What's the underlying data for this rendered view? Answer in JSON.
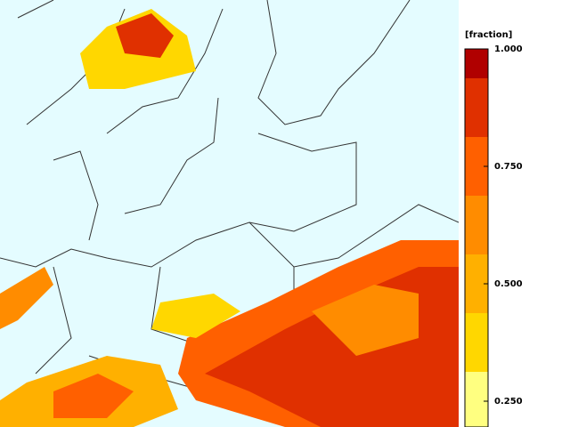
{
  "colorbar": {
    "label": "[fraction]",
    "ticks": [
      {
        "value": 1,
        "label": "1.000"
      },
      {
        "value": 0.75,
        "label": "0.750"
      },
      {
        "value": 0.5,
        "label": "0.500"
      },
      {
        "value": 0.25,
        "label": "0.250"
      }
    ],
    "levels": [
      {
        "from": 0.1875,
        "to": 0.3125,
        "color": "#ffff80"
      },
      {
        "from": 0.3125,
        "to": 0.4375,
        "color": "#ffd700"
      },
      {
        "from": 0.4375,
        "to": 0.5625,
        "color": "#ffb000"
      },
      {
        "from": 0.5625,
        "to": 0.6875,
        "color": "#ff8c00"
      },
      {
        "from": 0.6875,
        "to": 0.8125,
        "color": "#ff6000"
      },
      {
        "from": 0.8125,
        "to": 0.9375,
        "color": "#e03000"
      },
      {
        "from": 0.9375,
        "to": 1,
        "color": "#b00000"
      }
    ]
  }
}
